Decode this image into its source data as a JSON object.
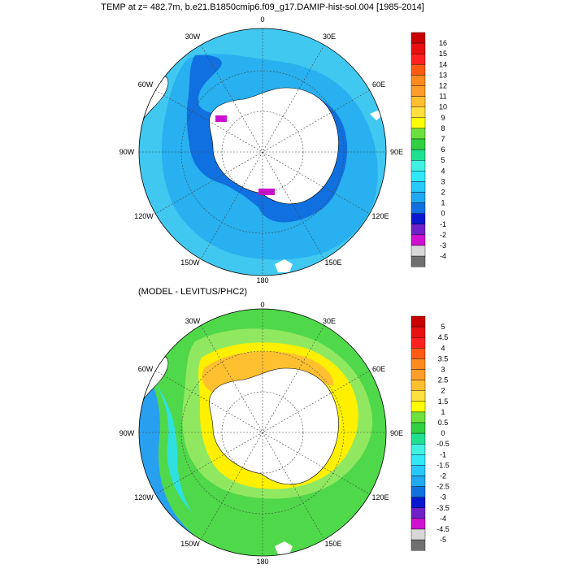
{
  "top_panel": {
    "title": "TEMP at z= 482.7m, b.e21.B1850cmip6.f09_g17.DAMIP-hist-sol.004 [1985-2014]",
    "lon_labels": {
      "n": "0",
      "ne": "30E",
      "ene": "60E",
      "e": "90E",
      "ese": "120E",
      "se": "150E",
      "s": "180",
      "sw": "150W",
      "wsw": "120W",
      "w": "90W",
      "wnw": "60W",
      "nw": "30W"
    },
    "colorbar": {
      "labels": [
        "16",
        "15",
        "14",
        "13",
        "12",
        "11",
        "10",
        "9",
        "8",
        "7",
        "6",
        "5",
        "4",
        "3",
        "2",
        "1",
        "0",
        "-1",
        "-2",
        "-3",
        "-4"
      ],
      "colors": [
        "#c80000",
        "#e81010",
        "#ff2020",
        "#ff5a14",
        "#ff8a1e",
        "#ff9e2a",
        "#ffc030",
        "#ffe040",
        "#ffff00",
        "#6ce03c",
        "#30d040",
        "#20e090",
        "#40f0e0",
        "#30e8f8",
        "#28c8f8",
        "#20a8f0",
        "#1070e0",
        "#0818d0",
        "#7020c8",
        "#d010d0",
        "#d8d8d8",
        "#707070"
      ]
    }
  },
  "bottom_panel": {
    "title": "(MODEL - LEVITUS/PHC2)",
    "lon_labels": {
      "n": "0",
      "ne": "30E",
      "ene": "60E",
      "e": "90E",
      "ese": "120E",
      "se": "150E",
      "s": "180",
      "sw": "150W",
      "wsw": "120W",
      "w": "90W",
      "wnw": "60W",
      "nw": "30W"
    },
    "colorbar": {
      "labels": [
        "5",
        "4.5",
        "4",
        "3.5",
        "3",
        "2.5",
        "2",
        "1.5",
        "1",
        "0.5",
        "0",
        "-0.5",
        "-1",
        "-1.5",
        "-2",
        "-2.5",
        "-3",
        "-3.5",
        "-4",
        "-4.5",
        "-5"
      ],
      "colors": [
        "#c80000",
        "#e81010",
        "#ff2020",
        "#ff5a14",
        "#ff8a1e",
        "#ff9e2a",
        "#ffc030",
        "#ffe040",
        "#ffff00",
        "#6ce03c",
        "#30d040",
        "#20e090",
        "#40f0e0",
        "#30e8f8",
        "#28c8f8",
        "#20a8f0",
        "#1070e0",
        "#0818d0",
        "#7020c8",
        "#d010d0",
        "#d8d8d8",
        "#707070"
      ]
    }
  },
  "colors": {
    "top_outer": "#40c8f0",
    "top_mid": "#28b0f0",
    "top_inner": "#2070e0",
    "bot_green": "#4fd84a",
    "bot_lightgreen": "#90e860",
    "bot_yellow": "#fff000",
    "bot_orange": "#ffc030",
    "bot_cyan": "#30e0e0",
    "bot_blue": "#28a0f0",
    "land": "#ffffff"
  }
}
